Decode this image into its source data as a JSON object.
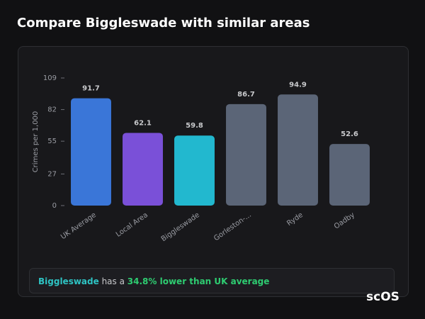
{
  "header": {
    "title": "Compare Biggleswade with similar areas"
  },
  "chart_data": {
    "type": "bar",
    "y_label": "Crimes per 1,000",
    "categories": [
      "UK Average",
      "Local Area",
      "Biggleswade",
      "Gorleston-...",
      "Ryde",
      "Oadby"
    ],
    "values": [
      91.7,
      62.1,
      59.8,
      86.7,
      94.9,
      52.6
    ],
    "colors": [
      "#3a76d8",
      "#7a50d8",
      "#22b8cf",
      "#5b6577",
      "#5b6577",
      "#5b6577"
    ],
    "ylim": [
      0,
      109
    ],
    "yticks": [
      0,
      27,
      55,
      82,
      109
    ],
    "grid": false
  },
  "summary": {
    "area": "Biggleswade",
    "text": "has a",
    "comparison": "34.8% lower than UK average"
  },
  "logo": "scOS"
}
